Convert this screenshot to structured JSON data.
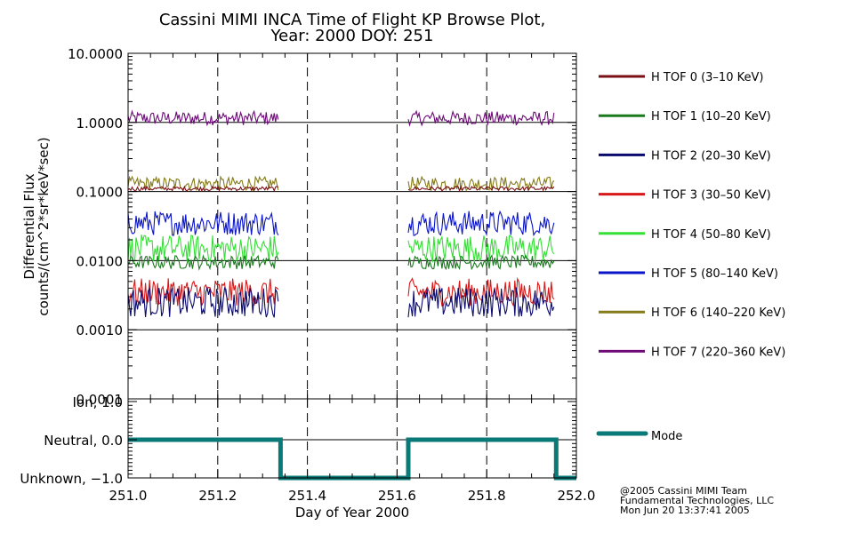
{
  "chart_data": {
    "type": "line",
    "title": "Cassini MIMI INCA Time of Flight KP Browse Plot,",
    "subtitle": "Year: 2000 DOY: 251",
    "xlabel": "Day of Year 2000",
    "ylabel": "Differential Flux",
    "ylabel2": "counts/(cm^2*sr*keV*sec)",
    "xlim": [
      251.0,
      252.0
    ],
    "ylim": [
      0.0001,
      10.0
    ],
    "yscale": "log",
    "x_ticks": [
      "251.0",
      "251.2",
      "251.4",
      "251.6",
      "251.8",
      "252.0"
    ],
    "x_tick_values": [
      251.0,
      251.2,
      251.4,
      251.6,
      251.8,
      252.0
    ],
    "y_ticks": [
      "10.0000",
      "1.0000",
      "0.1000",
      "0.0100",
      "0.0010",
      "0.0001"
    ],
    "y_tick_values": [
      10,
      1,
      0.1,
      0.01,
      0.001,
      0.0001
    ],
    "grid": true,
    "legend_position": "right",
    "data_gap": [
      251.34,
      251.63
    ],
    "series": [
      {
        "name": "H TOF 0 (3-10 KeV)",
        "label": "H TOF 0 (3–10 KeV)",
        "color": "#7a0f14",
        "level": 0.11,
        "spread": 0.08
      },
      {
        "name": "H TOF 1 (10-20 KeV)",
        "label": "H TOF 1 (10–20 KeV)",
        "color": "#1a7a1e",
        "level": 0.0095,
        "spread": 0.1
      },
      {
        "name": "H TOF 2 (20-30 KeV)",
        "label": "H TOF 2 (20–30 KeV)",
        "color": "#0a0a6e",
        "level": 0.0025,
        "spread": 0.22
      },
      {
        "name": "H TOF 3 (30-50 KeV)",
        "label": "H TOF 3 (30–50 KeV)",
        "color": "#d81818",
        "level": 0.0035,
        "spread": 0.2
      },
      {
        "name": "H TOF 4 (50-80 KeV)",
        "label": "H TOF 4 (50–80 KeV)",
        "color": "#33e033",
        "level": 0.015,
        "spread": 0.2
      },
      {
        "name": "H TOF 5 (80-140 KeV)",
        "label": "H TOF 5 (80–140 KeV)",
        "color": "#0a14c8",
        "level": 0.035,
        "spread": 0.18
      },
      {
        "name": "H TOF 6 (140-220 KeV)",
        "label": "H TOF 6 (140–220 KeV)",
        "color": "#857a18",
        "level": 0.13,
        "spread": 0.1
      },
      {
        "name": "H TOF 7 (220-360 KeV)",
        "label": "H TOF 7 (220–360 KeV)",
        "color": "#6e0a78",
        "level": 1.15,
        "spread": 0.1
      }
    ],
    "mode_panel": {
      "y_ticks": [
        "Ion, 1.0",
        "Neutral, 0.0",
        "Unknown, −1.0"
      ],
      "y_tick_values": [
        1.0,
        0.0,
        -1.0
      ],
      "ylim": [
        -1.0,
        1.0
      ],
      "series": {
        "name": "Mode",
        "color": "#0a7a78",
        "x": [
          251.0,
          251.34,
          251.34,
          251.625,
          251.625,
          251.955,
          251.955,
          252.0
        ],
        "y": [
          0,
          0,
          -1,
          -1,
          0,
          0,
          -1,
          -1
        ]
      }
    }
  },
  "footer": {
    "line1": "@2005 Cassini MIMI Team",
    "line2": "Fundamental Technologies, LLC",
    "line3": "Mon Jun 20 13:37:41 2005"
  }
}
